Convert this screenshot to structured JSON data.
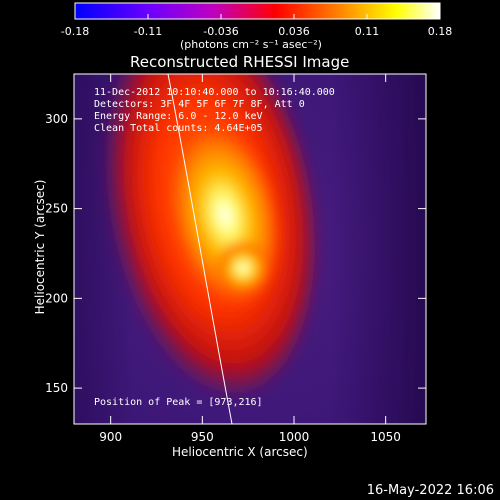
{
  "chart_data": {
    "type": "heatmap",
    "title": "Reconstructed RHESSI Image",
    "xlabel": "Heliocentric X (arcsec)",
    "ylabel": "Heliocentric Y (arcsec)",
    "xlim": [
      880,
      1072
    ],
    "ylim": [
      130,
      325
    ],
    "x_ticks": [
      900,
      950,
      1000,
      1050
    ],
    "y_ticks": [
      150,
      200,
      250,
      300
    ],
    "colorbar": {
      "ticks": [
        "-0.18",
        "-0.11",
        "-0.036",
        "0.036",
        "0.11",
        "0.18"
      ],
      "units_label": "(photons cm⁻² s⁻¹ asec⁻²)",
      "colors": [
        "#0000ff",
        "#6600ff",
        "#cc00cc",
        "#ff0000",
        "#ff8800",
        "#ffff00",
        "#ffffff"
      ]
    },
    "annotations": {
      "time_range": "11-Dec-2012 10:10:40.000 to 10:16:40.000",
      "detectors": "Detectors: 3F 4F 5F 6F 7F 8F, Att 0",
      "energy_range": "Energy Range: 6.0 - 12.0 keV",
      "clean": "Clean    Total counts: 4.64E+05",
      "peak": "Position of Peak = [973,216]"
    },
    "peak_position": [
      973,
      216
    ],
    "date_stamp": "16-May-2022 16:06"
  }
}
